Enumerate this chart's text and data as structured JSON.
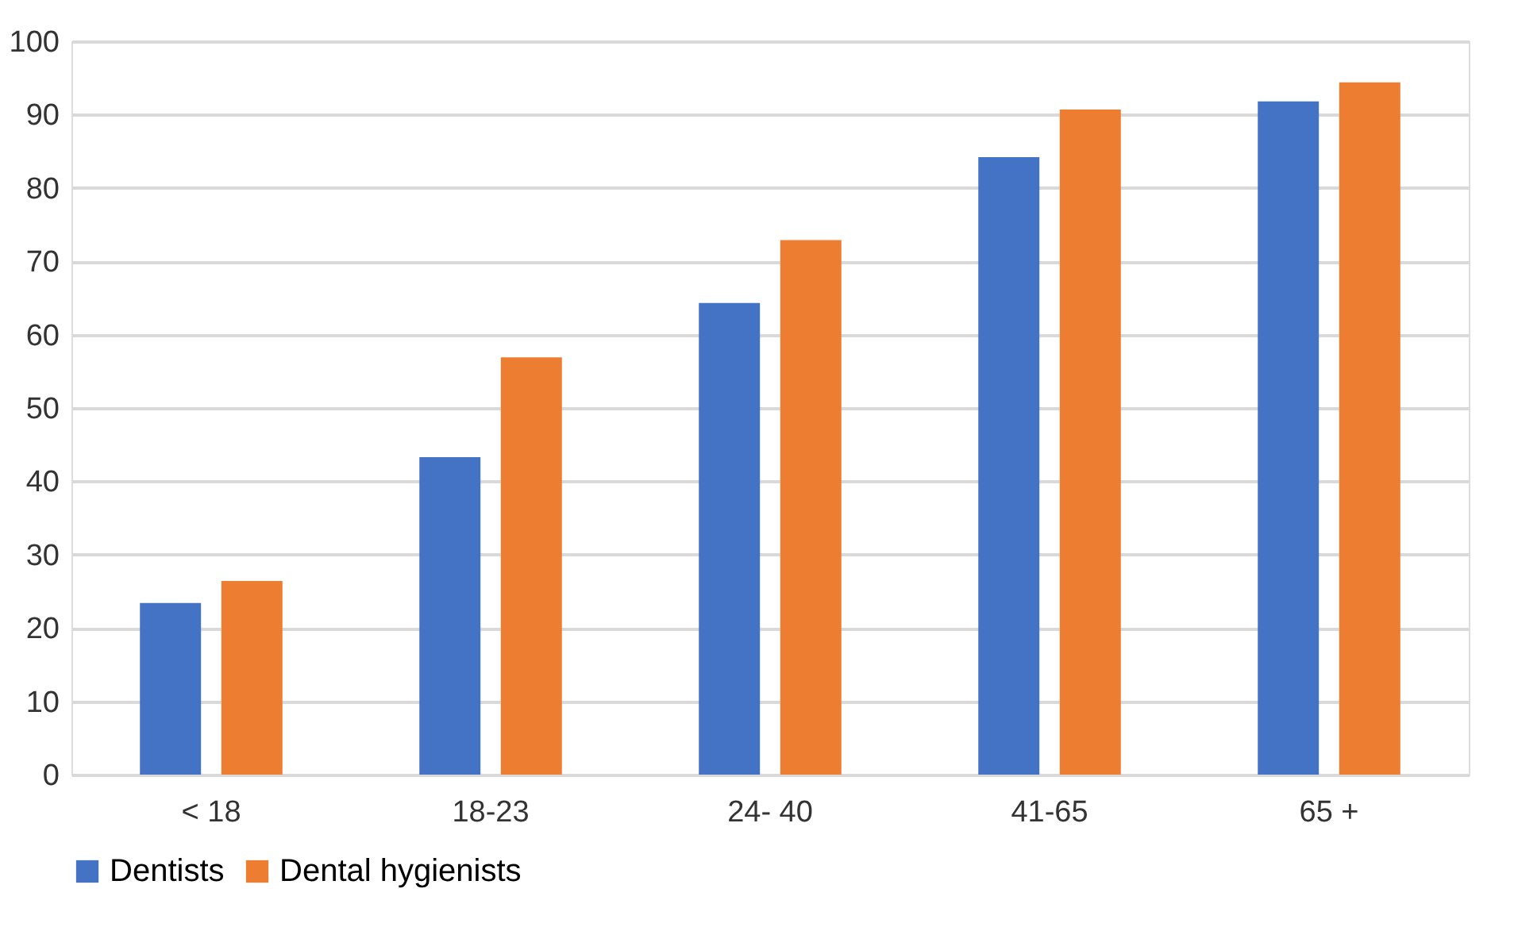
{
  "chart_data": {
    "type": "bar",
    "categories": [
      "< 18",
      "18-23",
      "24- 40",
      "41-65",
      "65 +"
    ],
    "series": [
      {
        "name": "Dentists",
        "color": "#4472c4",
        "values": [
          23.4,
          43.3,
          64.3,
          84.2,
          91.8
        ]
      },
      {
        "name": "Dental hygienists",
        "color": "#ed7d31",
        "values": [
          26.4,
          56.9,
          72.9,
          90.7,
          94.4
        ]
      }
    ],
    "ylim": [
      0,
      100
    ],
    "yticks": [
      0,
      10,
      20,
      30,
      40,
      50,
      60,
      70,
      80,
      90,
      100
    ],
    "grid": "y",
    "legend": "bottom"
  }
}
